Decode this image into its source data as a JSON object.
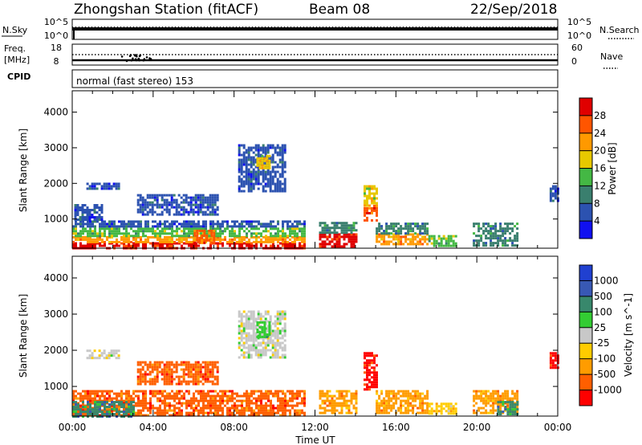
{
  "header": {
    "station": "Zhongshan Station (fitACF)",
    "beam": "Beam 08",
    "date": "22/Sep/2018"
  },
  "strip_panels": {
    "nsky": {
      "label": "N.Sky",
      "ticks": [
        "10^5",
        "10^0"
      ],
      "right_ticks": [
        "10^5",
        "10^0"
      ],
      "right_label": "N.Search"
    },
    "freq": {
      "label_line1": "Freq.",
      "label_line2": "[MHz]",
      "ticks": [
        "18",
        "8"
      ],
      "right_ticks": [
        "60",
        "0"
      ],
      "right_label": "Nave"
    },
    "cpid": {
      "label": "CPID",
      "text": "normal (fast stereo) 153"
    }
  },
  "x_axis": {
    "label": "Time UT",
    "ticks": [
      "00:00",
      "04:00",
      "08:00",
      "12:00",
      "16:00",
      "20:00",
      "00:00"
    ],
    "range_hours": [
      0,
      24
    ]
  },
  "colors": {
    "power": [
      "#1010f0",
      "#2c52b0",
      "#3a7f6e",
      "#44b844",
      "#e8c800",
      "#ff9900",
      "#ff5500",
      "#e00000"
    ],
    "velocity": [
      "#ff0000",
      "#ff5f00",
      "#ff9c00",
      "#ffcc00",
      "#c8c8c8",
      "#33cc33",
      "#38886c",
      "#3858b4",
      "#2040d0"
    ]
  },
  "chart_data": [
    {
      "type": "heatmap",
      "name": "power",
      "ylabel": "Slant Range [km]",
      "yticks": [
        1000,
        2000,
        3000,
        4000
      ],
      "ylim": [
        180,
        4600
      ],
      "colorbar": {
        "label": "Power [dB]",
        "ticks": [
          4,
          8,
          12,
          16,
          20,
          24,
          28
        ],
        "range": [
          0,
          32
        ]
      },
      "regions": [
        {
          "t0": 0.0,
          "t1": 11.5,
          "r0": 200,
          "r1": 350,
          "c": 7
        },
        {
          "t0": 0.0,
          "t1": 11.5,
          "r0": 350,
          "r1": 520,
          "c": 5
        },
        {
          "t0": 0.0,
          "t1": 11.5,
          "r0": 520,
          "r1": 760,
          "c": 3
        },
        {
          "t0": 0.0,
          "t1": 11.5,
          "r0": 760,
          "r1": 960,
          "c": 1
        },
        {
          "t0": 0.1,
          "t1": 1.5,
          "r0": 1000,
          "r1": 1420,
          "c": 1
        },
        {
          "t0": 0.7,
          "t1": 2.3,
          "r0": 1820,
          "r1": 2020,
          "c": 1
        },
        {
          "t0": 3.2,
          "t1": 7.2,
          "r0": 1100,
          "r1": 1700,
          "c": 1
        },
        {
          "t0": 6.0,
          "t1": 7.0,
          "r0": 350,
          "r1": 700,
          "c": 6
        },
        {
          "t0": 8.2,
          "t1": 10.5,
          "r0": 1800,
          "r1": 3100,
          "c": 1
        },
        {
          "t0": 9.1,
          "t1": 9.7,
          "r0": 2400,
          "r1": 2800,
          "c": 4
        },
        {
          "t0": 12.2,
          "t1": 14.0,
          "r0": 250,
          "r1": 600,
          "c": 7
        },
        {
          "t0": 12.2,
          "t1": 14.0,
          "r0": 600,
          "r1": 920,
          "c": 2
        },
        {
          "t0": 14.4,
          "t1": 15.0,
          "r0": 1400,
          "r1": 1950,
          "c": 4
        },
        {
          "t0": 14.4,
          "t1": 15.0,
          "r0": 950,
          "r1": 1400,
          "c": 6
        },
        {
          "t0": 15.0,
          "t1": 17.6,
          "r0": 300,
          "r1": 600,
          "c": 5
        },
        {
          "t0": 15.0,
          "t1": 17.6,
          "r0": 600,
          "r1": 900,
          "c": 2
        },
        {
          "t0": 17.6,
          "t1": 19.0,
          "r0": 250,
          "r1": 550,
          "c": 3
        },
        {
          "t0": 19.8,
          "t1": 22.0,
          "r0": 250,
          "r1": 900,
          "c": 2
        },
        {
          "t0": 23.6,
          "t1": 24.0,
          "r0": 1500,
          "r1": 1950,
          "c": 1
        }
      ]
    },
    {
      "type": "heatmap",
      "name": "velocity",
      "ylabel": "Slant Range [km]",
      "yticks": [
        1000,
        2000,
        3000,
        4000
      ],
      "ylim": [
        180,
        4600
      ],
      "colorbar": {
        "label": "Velocity [m s^-1]",
        "ticks": [
          "1000",
          "500",
          "100",
          "25",
          "-25",
          "-100",
          "-500",
          "-1000"
        ]
      },
      "regions": [
        {
          "t0": 0.0,
          "t1": 11.5,
          "r0": 200,
          "r1": 900,
          "c": 1
        },
        {
          "t0": 0.0,
          "t1": 3.0,
          "r0": 200,
          "r1": 600,
          "c": 6
        },
        {
          "t0": 0.7,
          "t1": 2.3,
          "r0": 1820,
          "r1": 2020,
          "c": 4
        },
        {
          "t0": 3.2,
          "t1": 7.2,
          "r0": 1100,
          "r1": 1700,
          "c": 1
        },
        {
          "t0": 8.2,
          "t1": 10.5,
          "r0": 1800,
          "r1": 3100,
          "c": 4
        },
        {
          "t0": 9.1,
          "t1": 9.7,
          "r0": 2400,
          "r1": 2800,
          "c": 5
        },
        {
          "t0": 12.2,
          "t1": 14.0,
          "r0": 250,
          "r1": 900,
          "c": 2
        },
        {
          "t0": 14.4,
          "t1": 15.0,
          "r0": 950,
          "r1": 1950,
          "c": 0
        },
        {
          "t0": 15.0,
          "t1": 17.6,
          "r0": 300,
          "r1": 900,
          "c": 2
        },
        {
          "t0": 17.6,
          "t1": 19.0,
          "r0": 250,
          "r1": 550,
          "c": 3
        },
        {
          "t0": 19.8,
          "t1": 22.0,
          "r0": 250,
          "r1": 900,
          "c": 2
        },
        {
          "t0": 21.0,
          "t1": 22.0,
          "r0": 250,
          "r1": 600,
          "c": 6
        },
        {
          "t0": 23.6,
          "t1": 24.0,
          "r0": 1500,
          "r1": 1950,
          "c": 0
        }
      ]
    }
  ]
}
